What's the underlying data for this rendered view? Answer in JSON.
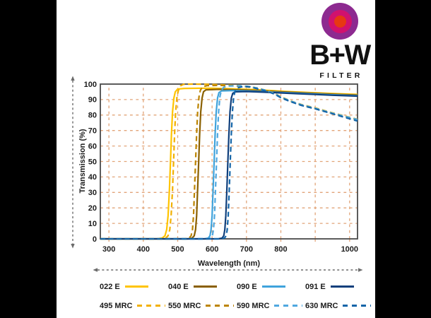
{
  "logo": {
    "brand": "B+W",
    "subtitle": "FILTER",
    "ring_outer": "#8D2A90",
    "ring_middle": "#D1116E",
    "ring_inner": "#E73812"
  },
  "chart_data": {
    "type": "line",
    "xlabel": "Wavelength (nm)",
    "ylabel": "Transmission (%)",
    "xlim": [
      275,
      1023
    ],
    "ylim": [
      0,
      100
    ],
    "x_gridlines": [
      300,
      400,
      500,
      600,
      700,
      800,
      900,
      1000
    ],
    "x_tick_labels": [
      {
        "label": "300",
        "value": 300
      },
      {
        "label": "400",
        "value": 400
      },
      {
        "label": "500",
        "value": 500
      },
      {
        "label": "600",
        "value": 600
      },
      {
        "label": "700",
        "value": 700
      },
      {
        "label": "800",
        "value": 800
      },
      {
        "label": "1000",
        "value": 1000
      }
    ],
    "y_ticks": [
      0,
      10,
      20,
      30,
      40,
      50,
      60,
      70,
      80,
      90,
      100
    ],
    "grid_color": "#E2A478",
    "axis_color": "#4A4A4A",
    "text_color": "#1B1B1B",
    "arrow_color": "#6B6B6B",
    "series": [
      {
        "name": "022 E",
        "color": "#FFC400",
        "dashed": false,
        "points": [
          [
            275,
            0
          ],
          [
            440,
            0
          ],
          [
            455,
            0.5
          ],
          [
            463,
            2
          ],
          [
            468,
            6
          ],
          [
            472,
            15
          ],
          [
            476,
            32
          ],
          [
            479,
            50
          ],
          [
            482,
            68
          ],
          [
            485,
            82
          ],
          [
            489,
            91
          ],
          [
            493,
            95
          ],
          [
            500,
            96.8
          ],
          [
            520,
            97.2
          ],
          [
            560,
            97.3
          ],
          [
            600,
            97.3
          ],
          [
            650,
            97
          ],
          [
            700,
            96.6
          ],
          [
            750,
            96.1
          ],
          [
            800,
            95.4
          ],
          [
            850,
            94.9
          ],
          [
            900,
            94.4
          ],
          [
            950,
            93.9
          ],
          [
            1000,
            93.5
          ]
        ]
      },
      {
        "name": "040 E",
        "color": "#8A6000",
        "dashed": false,
        "points": [
          [
            275,
            0
          ],
          [
            530,
            0
          ],
          [
            542,
            0.5
          ],
          [
            548,
            2
          ],
          [
            552,
            6
          ],
          [
            555,
            15
          ],
          [
            558,
            32
          ],
          [
            561,
            50
          ],
          [
            564,
            68
          ],
          [
            567,
            82
          ],
          [
            571,
            91
          ],
          [
            575,
            95
          ],
          [
            582,
            96.3
          ],
          [
            620,
            96.6
          ],
          [
            660,
            96.4
          ],
          [
            700,
            96.1
          ],
          [
            750,
            95.6
          ],
          [
            800,
            95
          ],
          [
            850,
            94.5
          ],
          [
            900,
            94
          ],
          [
            950,
            93.5
          ],
          [
            1000,
            93.1
          ]
        ]
      },
      {
        "name": "090 E",
        "color": "#3FA3DC",
        "dashed": false,
        "points": [
          [
            275,
            0
          ],
          [
            578,
            0
          ],
          [
            589,
            0.5
          ],
          [
            594,
            2
          ],
          [
            597,
            6
          ],
          [
            600,
            15
          ],
          [
            603,
            32
          ],
          [
            606,
            50
          ],
          [
            609,
            68
          ],
          [
            612,
            82
          ],
          [
            616,
            91
          ],
          [
            620,
            94.5
          ],
          [
            628,
            95.6
          ],
          [
            660,
            95.8
          ],
          [
            700,
            95.6
          ],
          [
            750,
            95.1
          ],
          [
            800,
            94.6
          ],
          [
            850,
            94.1
          ],
          [
            900,
            93.6
          ],
          [
            950,
            93.1
          ],
          [
            1000,
            92.7
          ]
        ]
      },
      {
        "name": "091 E",
        "color": "#0F3F7C",
        "dashed": false,
        "points": [
          [
            275,
            0
          ],
          [
            618,
            0
          ],
          [
            629,
            0.5
          ],
          [
            634,
            2
          ],
          [
            637,
            6
          ],
          [
            640,
            15
          ],
          [
            643,
            32
          ],
          [
            646,
            50
          ],
          [
            649,
            68
          ],
          [
            652,
            82
          ],
          [
            656,
            91
          ],
          [
            660,
            94
          ],
          [
            668,
            95
          ],
          [
            700,
            95.2
          ],
          [
            750,
            94.8
          ],
          [
            800,
            94.3
          ],
          [
            850,
            93.8
          ],
          [
            900,
            93.3
          ],
          [
            950,
            92.8
          ],
          [
            1000,
            92.4
          ]
        ]
      },
      {
        "name": "495 MRC",
        "color": "#F2B000",
        "dashed": true,
        "points": [
          [
            275,
            0
          ],
          [
            452,
            0
          ],
          [
            465,
            0.5
          ],
          [
            472,
            2
          ],
          [
            477,
            6
          ],
          [
            481,
            15
          ],
          [
            485,
            32
          ],
          [
            488,
            50
          ],
          [
            491,
            68
          ],
          [
            494,
            82
          ],
          [
            498,
            92
          ],
          [
            502,
            96
          ],
          [
            508,
            98.8
          ],
          [
            516,
            99.8
          ],
          [
            540,
            100
          ],
          [
            580,
            99.9
          ],
          [
            620,
            99.6
          ],
          [
            660,
            99.2
          ],
          [
            700,
            98.6
          ],
          [
            730,
            97.6
          ],
          [
            760,
            95.8
          ],
          [
            780,
            94.2
          ],
          [
            800,
            91.8
          ],
          [
            830,
            89
          ],
          [
            860,
            86.8
          ],
          [
            900,
            84.6
          ],
          [
            950,
            81.4
          ],
          [
            1000,
            78.6
          ]
        ]
      },
      {
        "name": "550 MRC",
        "color": "#BC8400",
        "dashed": true,
        "points": [
          [
            275,
            0
          ],
          [
            520,
            0
          ],
          [
            533,
            0.5
          ],
          [
            539,
            2
          ],
          [
            543,
            6
          ],
          [
            546,
            15
          ],
          [
            549,
            32
          ],
          [
            552,
            50
          ],
          [
            555,
            68
          ],
          [
            558,
            82
          ],
          [
            562,
            92
          ],
          [
            566,
            96
          ],
          [
            572,
            98.2
          ],
          [
            585,
            99
          ],
          [
            620,
            99.2
          ],
          [
            660,
            98.9
          ],
          [
            700,
            98.3
          ],
          [
            730,
            97.3
          ],
          [
            760,
            95.5
          ],
          [
            780,
            93.9
          ],
          [
            800,
            91.4
          ],
          [
            830,
            88.7
          ],
          [
            860,
            86.4
          ],
          [
            900,
            84.2
          ],
          [
            950,
            81
          ],
          [
            1000,
            78.2
          ]
        ]
      },
      {
        "name": "590 MRC",
        "color": "#4FA8E0",
        "dashed": true,
        "points": [
          [
            275,
            0
          ],
          [
            585,
            0
          ],
          [
            596,
            0.5
          ],
          [
            601,
            2
          ],
          [
            604,
            6
          ],
          [
            607,
            15
          ],
          [
            610,
            32
          ],
          [
            613,
            50
          ],
          [
            616,
            68
          ],
          [
            619,
            82
          ],
          [
            623,
            92
          ],
          [
            627,
            96
          ],
          [
            634,
            98
          ],
          [
            650,
            98.8
          ],
          [
            680,
            98.9
          ],
          [
            700,
            98.6
          ],
          [
            730,
            97.5
          ],
          [
            760,
            95.7
          ],
          [
            780,
            94
          ],
          [
            800,
            91.6
          ],
          [
            830,
            88.9
          ],
          [
            860,
            86.6
          ],
          [
            900,
            84.4
          ],
          [
            950,
            81.2
          ],
          [
            1000,
            78.4
          ]
        ]
      },
      {
        "name": "630 MRC",
        "color": "#1465A8",
        "dashed": true,
        "points": [
          [
            275,
            0
          ],
          [
            625,
            0
          ],
          [
            636,
            0.5
          ],
          [
            641,
            2
          ],
          [
            644,
            6
          ],
          [
            647,
            15
          ],
          [
            650,
            32
          ],
          [
            653,
            50
          ],
          [
            656,
            68
          ],
          [
            659,
            82
          ],
          [
            663,
            92
          ],
          [
            667,
            95.5
          ],
          [
            674,
            97.5
          ],
          [
            690,
            98.5
          ],
          [
            710,
            98.2
          ],
          [
            730,
            97.1
          ],
          [
            760,
            95.3
          ],
          [
            780,
            93.7
          ],
          [
            800,
            91.2
          ],
          [
            830,
            88.5
          ],
          [
            860,
            86.2
          ],
          [
            900,
            84
          ],
          [
            950,
            80.8
          ],
          [
            1000,
            77.6
          ]
        ]
      }
    ]
  },
  "legend": {
    "items": [
      {
        "label": "022 E",
        "color": "#FFC400",
        "dashed": false
      },
      {
        "label": "040 E",
        "color": "#8A6000",
        "dashed": false
      },
      {
        "label": "090 E",
        "color": "#3FA3DC",
        "dashed": false
      },
      {
        "label": "091 E",
        "color": "#0F3F7C",
        "dashed": false
      },
      {
        "label": "495 MRC",
        "color": "#F2B000",
        "dashed": true
      },
      {
        "label": "550 MRC",
        "color": "#BC8400",
        "dashed": true
      },
      {
        "label": "590 MRC",
        "color": "#4FA8E0",
        "dashed": true
      },
      {
        "label": "630 MRC",
        "color": "#1465A8",
        "dashed": true
      }
    ]
  }
}
